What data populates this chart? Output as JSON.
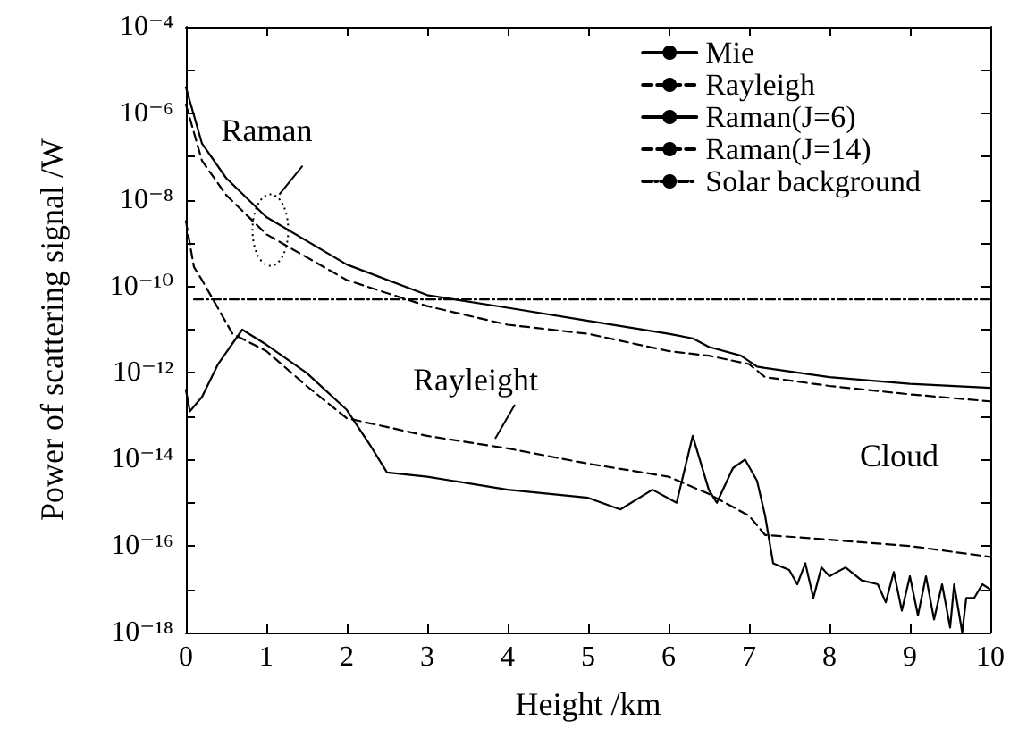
{
  "chart_data": {
    "type": "line",
    "xlabel": "Height /km",
    "ylabel": "Power of scattering signal /W",
    "log": "y",
    "xlim": [
      0,
      10
    ],
    "xticks": [
      0,
      1,
      2,
      3,
      4,
      5,
      6,
      7,
      8,
      9,
      10
    ],
    "ylim": [
      1e-18,
      0.0001
    ],
    "yticks": [
      {
        "value": 1e-18,
        "label": "10⁻¹⁸"
      },
      {
        "value": 1e-17,
        "label": null
      },
      {
        "value": 1e-16,
        "label": "10⁻¹⁶"
      },
      {
        "value": 1e-15,
        "label": null
      },
      {
        "value": 1e-14,
        "label": "10⁻¹⁴"
      },
      {
        "value": 1e-13,
        "label": null
      },
      {
        "value": 1e-12,
        "label": "10⁻¹²"
      },
      {
        "value": 1e-11,
        "label": null
      },
      {
        "value": 1e-10,
        "label": "10⁻¹⁰"
      },
      {
        "value": 1e-09,
        "label": null
      },
      {
        "value": 1e-08,
        "label": "10⁻⁸"
      },
      {
        "value": 1e-07,
        "label": null
      },
      {
        "value": 1e-06,
        "label": "10⁻⁶"
      },
      {
        "value": 1e-05,
        "label": null
      },
      {
        "value": 0.0001,
        "label": "10⁻⁴"
      }
    ],
    "grid": false,
    "legend": "top right",
    "marker": "none",
    "series": [
      {
        "name": "Mie",
        "color": "#000000",
        "line_style": "solid",
        "x": [
          0,
          0.2,
          0.5,
          1,
          2,
          3,
          4,
          5,
          6,
          6.3,
          6.5,
          6.9,
          7.1,
          7.2,
          8,
          9,
          10
        ],
        "values": [
          4e-06,
          2e-07,
          3.2e-08,
          4e-09,
          3.2e-10,
          6.3e-11,
          3.2e-11,
          1.6e-11,
          8e-12,
          6.3e-12,
          4e-12,
          2.5e-12,
          1.4e-12,
          1.3e-12,
          8e-13,
          5.6e-13,
          4.5e-13
        ]
      },
      {
        "name": "Rayleigh",
        "color": "#000000",
        "line_style": "dashed",
        "x": [
          0,
          0.2,
          0.5,
          1,
          2,
          3,
          4,
          5,
          6,
          6.5,
          7,
          7.2,
          8,
          9,
          10
        ],
        "values": [
          1.6e-06,
          8e-08,
          1.3e-08,
          1.6e-09,
          1.4e-10,
          3.5e-11,
          1.3e-11,
          8e-12,
          3.2e-12,
          2.5e-12,
          1.6e-12,
          8e-13,
          5e-13,
          3.2e-13,
          2.2e-13
        ]
      },
      {
        "name": "Raman(J=6)",
        "color": "#000000",
        "line_style": "solid",
        "x": [
          0,
          0.05,
          0.2,
          0.4,
          0.7,
          1,
          1.5,
          2,
          2.3,
          2.5,
          3,
          4,
          5,
          5.4,
          5.8,
          6.1,
          6.3,
          6.5,
          6.6,
          6.8,
          6.95,
          7.1,
          7.2,
          7.3,
          7.5,
          7.6,
          7.7,
          7.8,
          7.9,
          8,
          8.2,
          8.4,
          8.6,
          8.7,
          8.8,
          8.9,
          9,
          9.1,
          9.2,
          9.3,
          9.4,
          9.5,
          9.55,
          9.65,
          9.7,
          9.8,
          9.9,
          10
        ],
        "values": [
          4e-13,
          1.3e-13,
          2.8e-13,
          1.6e-12,
          1e-11,
          4.5e-12,
          1e-12,
          1.4e-13,
          2e-14,
          5e-15,
          4e-15,
          2e-15,
          1.3e-15,
          7e-16,
          2e-15,
          1e-15,
          3.5e-14,
          2e-15,
          1e-15,
          6.3e-15,
          1e-14,
          3.2e-15,
          5e-16,
          4e-17,
          2.8e-17,
          1.3e-17,
          4e-17,
          6.3e-18,
          3.2e-17,
          2e-17,
          3.2e-17,
          1.6e-17,
          1.3e-17,
          5e-18,
          2.5e-17,
          3.2e-18,
          2e-17,
          2.5e-18,
          2e-17,
          2e-18,
          1.3e-17,
          1.3e-18,
          1.3e-17,
          1e-18,
          6.3e-18,
          6.3e-18,
          1.3e-17,
          1e-17
        ]
      },
      {
        "name": "Raman(J=14)",
        "color": "#000000",
        "line_style": "dashed",
        "x": [
          0,
          0.1,
          0.2,
          0.58,
          1,
          1.5,
          2,
          3,
          4,
          5,
          6,
          6.5,
          7,
          7.2,
          8,
          9,
          10
        ],
        "values": [
          3.2e-09,
          2.8e-10,
          1.4e-10,
          8e-12,
          3.2e-12,
          5e-13,
          9e-14,
          3.5e-14,
          1.8e-14,
          8e-15,
          4e-15,
          1.6e-15,
          5e-16,
          1.8e-16,
          1.4e-16,
          1e-16,
          5.6e-17
        ]
      },
      {
        "name": "Solar background",
        "color": "#000000",
        "line_style": "dashdot",
        "x": [
          0.1,
          10
        ],
        "values": [
          5e-11,
          5e-11
        ]
      }
    ],
    "annotations": [
      {
        "text": "Raman",
        "x": 1.05,
        "y": 2e-09
      },
      {
        "text": "Rayleight",
        "x": 3.8,
        "y": 2.5e-14
      },
      "Cloud"
    ]
  }
}
